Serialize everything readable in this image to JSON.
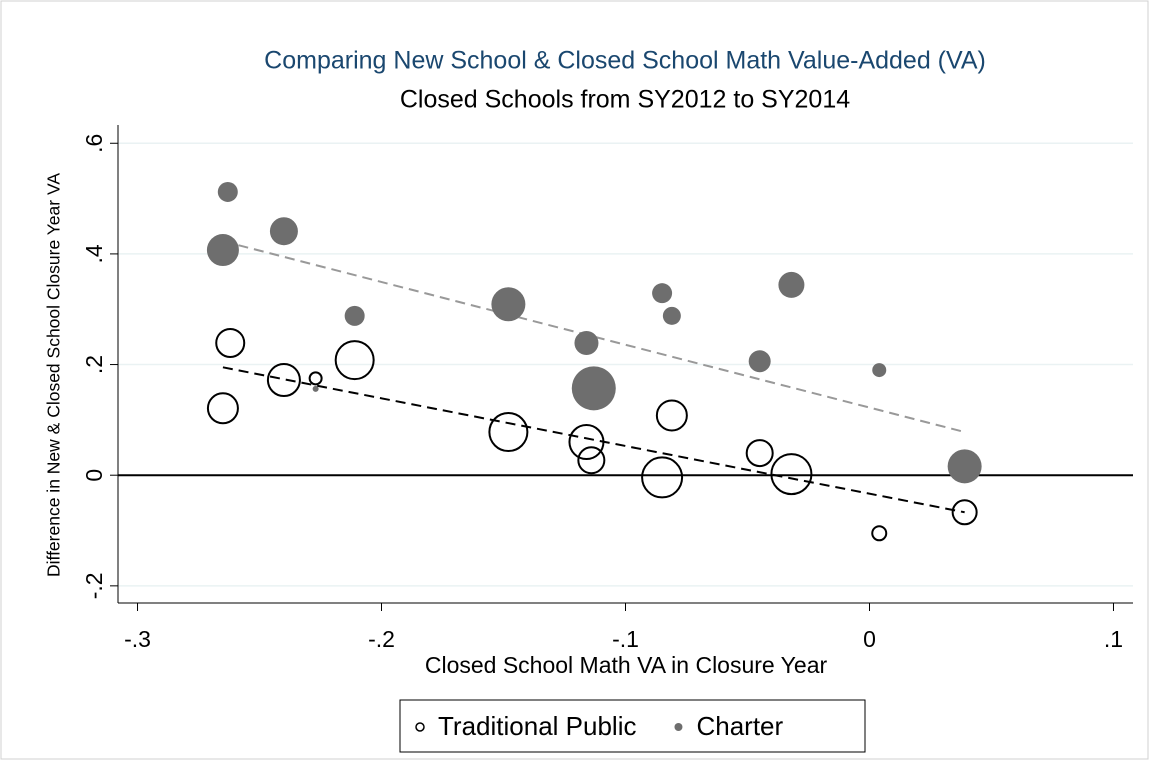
{
  "chart_data": {
    "type": "scatter",
    "title": "Comparing New School & Closed School Math Value-Added (VA)",
    "subtitle": "Closed Schools from SY2012 to SY2014",
    "x_label": "Closed School Math VA in Closure Year",
    "y_label": "Difference in New & Closed School Closure Year VA",
    "xlim": [
      -0.308,
      0.108
    ],
    "ylim": [
      -0.231,
      0.633
    ],
    "xticks": [
      {
        "value": -0.3,
        "label": "-.3"
      },
      {
        "value": -0.2,
        "label": "-.2"
      },
      {
        "value": -0.1,
        "label": "-.1"
      },
      0,
      {
        "value": 0.1,
        "label": ".1"
      }
    ],
    "yticks": [
      {
        "value": -0.2,
        "label": "-.2"
      },
      0,
      {
        "value": 0.2,
        "label": ".2"
      },
      {
        "value": 0.4,
        "label": ".4"
      },
      {
        "value": 0.6,
        "label": ".6"
      }
    ],
    "grid": true,
    "hline": 0,
    "legend": "bottom",
    "series": [
      {
        "name": "Traditional Public",
        "color": "#000000",
        "filled": false,
        "x": [
          -0.262,
          -0.265,
          -0.24,
          -0.227,
          -0.211,
          -0.148,
          -0.116,
          -0.114,
          -0.085,
          -0.081,
          -0.045,
          -0.032,
          0.004,
          0.039
        ],
        "values": [
          0.239,
          0.121,
          0.172,
          0.175,
          0.208,
          0.078,
          0.06,
          0.027,
          -0.004,
          0.108,
          0.04,
          0.002,
          -0.105,
          -0.067
        ],
        "sizes": [
          14,
          15,
          16,
          6,
          19,
          19,
          17,
          13,
          20,
          15,
          13,
          20,
          7,
          12
        ]
      },
      {
        "name": "Charter",
        "color": "#6e6e6e",
        "filled": true,
        "x": [
          -0.263,
          -0.265,
          -0.24,
          -0.227,
          -0.211,
          -0.148,
          -0.116,
          -0.113,
          -0.085,
          -0.081,
          -0.045,
          -0.032,
          0.004,
          0.039
        ],
        "values": [
          0.512,
          0.407,
          0.441,
          0.156,
          0.288,
          0.309,
          0.239,
          0.157,
          0.329,
          0.288,
          0.206,
          0.344,
          0.19,
          0.016
        ],
        "sizes": [
          10,
          16,
          14,
          3,
          10,
          17,
          12,
          22,
          10,
          9,
          11,
          13,
          7,
          17
        ]
      }
    ],
    "fit_lines": [
      {
        "color": "#000000",
        "x": [
          -0.265,
          0.039
        ],
        "values": [
          0.195,
          -0.067
        ]
      },
      {
        "color": "#999999",
        "x": [
          -0.265,
          0.039
        ],
        "values": [
          0.423,
          0.078
        ]
      }
    ]
  }
}
